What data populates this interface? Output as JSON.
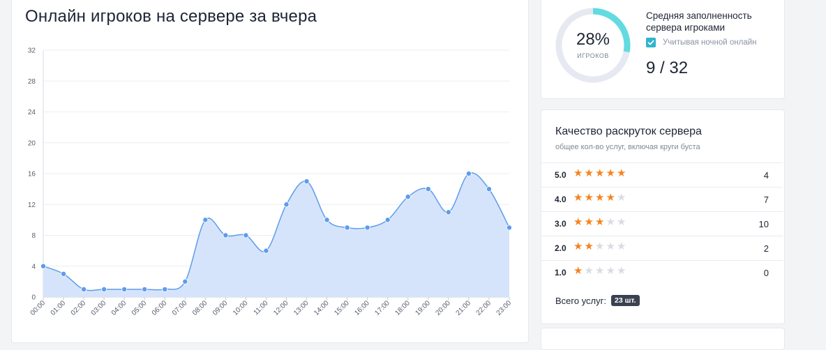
{
  "chart_card": {
    "title": "Онлайн игроков на сервере за вчера"
  },
  "chart_data": {
    "type": "area",
    "title": "Онлайн игроков на сервере за вчера",
    "x": [
      "00:00",
      "01:00",
      "02:00",
      "03:00",
      "04:00",
      "05:00",
      "06:00",
      "07:00",
      "08:00",
      "09:00",
      "10:00",
      "11:00",
      "12:00",
      "13:00",
      "14:00",
      "15:00",
      "16:00",
      "17:00",
      "18:00",
      "19:00",
      "20:00",
      "21:00",
      "22:00",
      "23:00"
    ],
    "values": [
      4,
      3,
      1,
      1,
      1,
      1,
      1,
      2,
      10,
      8,
      8,
      6,
      12,
      15,
      10,
      9,
      9,
      10,
      13,
      14,
      11,
      16,
      14,
      9
    ],
    "ylim": [
      0,
      32
    ],
    "yticks": [
      0,
      4,
      8,
      12,
      16,
      20,
      24,
      28,
      32
    ],
    "grid": true,
    "line_color": "#5d9cec",
    "fill_color": "#d6e4fb"
  },
  "fill_card": {
    "percent_text": "28%",
    "percent_value": 28,
    "percent_label": "ИГРОКОВ",
    "title": "Средняя заполненность сервера игроками",
    "night_label": "Учитывая ночной онлайн",
    "night_checked": true,
    "count": "9 / 32",
    "ring_color": "#62dbe0",
    "track_color": "#e6e9f1"
  },
  "quality_card": {
    "title": "Качество раскруток сервера",
    "subtitle": "общее кол-во услуг, включая круги буста",
    "ratings": [
      {
        "score": "5.0",
        "stars": 5,
        "count": "4"
      },
      {
        "score": "4.0",
        "stars": 4,
        "count": "7"
      },
      {
        "score": "3.0",
        "stars": 3,
        "count": "10"
      },
      {
        "score": "2.0",
        "stars": 2,
        "count": "2"
      },
      {
        "score": "1.0",
        "stars": 1,
        "count": "0"
      }
    ],
    "total_label": "Всего услуг:",
    "total_badge": "23 шт."
  }
}
